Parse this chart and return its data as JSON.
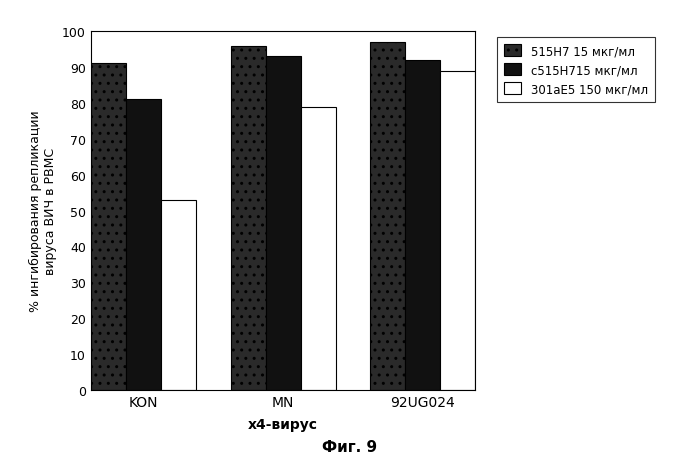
{
  "categories": [
    "KON",
    "MN",
    "92UG024"
  ],
  "series": [
    {
      "label": "515H7 15 мкг/мл",
      "values": [
        91,
        96,
        97
      ],
      "color": "#2a2a2a",
      "hatch": ".."
    },
    {
      "label": "с515H715 мкг/мл",
      "values": [
        81,
        93,
        92
      ],
      "color": "#111111",
      "hatch": ""
    },
    {
      "label": "301аE5 150 мкг/мл",
      "values": [
        53,
        79,
        89
      ],
      "color": "#ffffff",
      "hatch": ""
    }
  ],
  "ylabel": "% ингибирования репликации\nвируса ВИЧ в PBMC",
  "xlabel": "х4-вирус",
  "ylim": [
    0,
    100
  ],
  "yticks": [
    0,
    10,
    20,
    30,
    40,
    50,
    60,
    70,
    80,
    90,
    100
  ],
  "caption": "Фиг. 9",
  "bar_width": 0.2,
  "group_positions": [
    0.3,
    1.1,
    1.9
  ],
  "background_color": "#ffffff",
  "plot_bg_color": "#ffffff",
  "border_color": "#000000"
}
